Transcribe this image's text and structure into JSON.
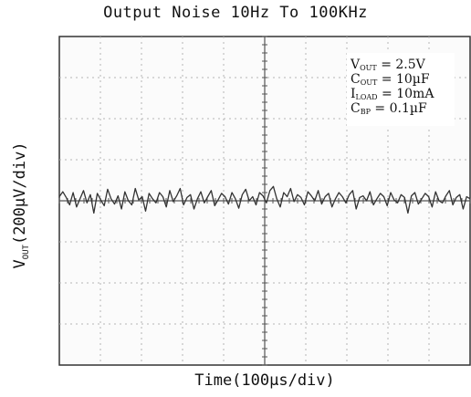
{
  "chart_data": {
    "type": "line",
    "title": "Output Noise 10Hz To 100KHz",
    "xlabel": "Time(100µs/div)",
    "ylabel": {
      "main": "V",
      "sub": "OUT",
      "rest": "(200µV/div)"
    },
    "grid": true,
    "xlim": [
      0,
      10
    ],
    "ylim": [
      -4,
      4
    ],
    "series": [
      {
        "values": [
          0.1,
          0.22,
          0.08,
          -0.1,
          0.2,
          -0.15,
          0.05,
          0.25,
          -0.05,
          0.15,
          -0.3,
          0.18,
          0.02,
          -0.12,
          0.28,
          0.05,
          -0.08,
          0.12,
          -0.2,
          0.22,
          0.0,
          -0.1,
          0.3,
          0.02,
          0.1,
          -0.25,
          0.18,
          0.05,
          -0.05,
          0.2,
          0.1,
          -0.15,
          0.25,
          -0.02,
          0.12,
          0.3,
          -0.1,
          0.08,
          0.15,
          -0.2,
          0.05,
          0.22,
          -0.05,
          0.1,
          0.25,
          -0.12,
          0.02,
          0.18,
          0.1,
          -0.08,
          0.2,
          0.05,
          -0.18,
          0.15,
          0.28,
          0.0,
          0.1,
          -0.1,
          0.2,
          0.12,
          -0.05,
          0.25,
          0.35,
          0.05,
          -0.15,
          0.2,
          0.1,
          0.3,
          -0.02,
          0.15,
          0.08,
          -0.1,
          0.22,
          0.12,
          0.0,
          0.25,
          -0.08,
          0.1,
          0.18,
          -0.15,
          0.05,
          0.2,
          0.1,
          -0.05,
          0.15,
          0.25,
          -0.2,
          0.08,
          0.12,
          0.0,
          0.22,
          -0.1,
          0.05,
          0.18,
          0.1,
          -0.12,
          0.2,
          0.02,
          -0.05,
          0.15,
          0.08,
          -0.3,
          0.12,
          0.2,
          -0.08,
          0.05,
          0.18,
          0.1,
          -0.15,
          0.22,
          0.0,
          -0.05,
          0.12,
          0.25,
          -0.1,
          0.08,
          0.15,
          -0.2,
          0.1,
          0.05
        ]
      }
    ],
    "annotations": [
      {
        "main": "V",
        "sub": "OUT",
        "rest": " = 2.5V"
      },
      {
        "main": "C",
        "sub": "OUT",
        "rest": " = 10µF"
      },
      {
        "main": "I",
        "sub": "LOAD",
        "rest": " = 10mA"
      },
      {
        "main": "C",
        "sub": "BP",
        "rest": " = 0.1µF"
      }
    ]
  }
}
